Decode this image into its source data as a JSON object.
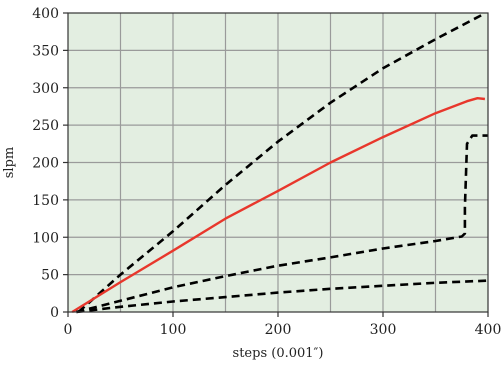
{
  "chart_data": {
    "type": "line",
    "title": "",
    "xlabel": "steps (0.001″)",
    "ylabel": "slpm",
    "xlim": [
      0,
      400
    ],
    "ylim": [
      0,
      400
    ],
    "x_ticks": [
      "0",
      "100",
      "200",
      "300",
      "400"
    ],
    "y_ticks": [
      "0",
      "50",
      "100",
      "150",
      "200",
      "250",
      "300",
      "350",
      "400"
    ],
    "grid": true,
    "x_minor_grid_step": 50,
    "y_grid_step": 50,
    "legend": "none",
    "series": [
      {
        "style": "dashed",
        "color": "#000000",
        "points": [
          [
            10,
            0
          ],
          [
            50,
            50
          ],
          [
            100,
            108
          ],
          [
            150,
            170
          ],
          [
            200,
            228
          ],
          [
            250,
            280
          ],
          [
            300,
            326
          ],
          [
            350,
            365
          ],
          [
            395,
            398
          ]
        ]
      },
      {
        "style": "solid",
        "color": "#e8372c",
        "points": [
          [
            4,
            0
          ],
          [
            50,
            40
          ],
          [
            100,
            82
          ],
          [
            150,
            125
          ],
          [
            200,
            162
          ],
          [
            250,
            200
          ],
          [
            300,
            234
          ],
          [
            350,
            266
          ],
          [
            380,
            282
          ],
          [
            390,
            286
          ],
          [
            397,
            285
          ]
        ]
      },
      {
        "style": "dashed",
        "color": "#000000",
        "points": [
          [
            8,
            0
          ],
          [
            50,
            15
          ],
          [
            100,
            33
          ],
          [
            150,
            48
          ],
          [
            200,
            62
          ],
          [
            250,
            73
          ],
          [
            300,
            85
          ],
          [
            350,
            95
          ],
          [
            375,
            101
          ],
          [
            378,
            105
          ],
          [
            378,
            140
          ],
          [
            380,
            225
          ],
          [
            385,
            236
          ],
          [
            400,
            236
          ]
        ]
      },
      {
        "style": "dashed",
        "color": "#000000",
        "points": [
          [
            8,
            0
          ],
          [
            50,
            7
          ],
          [
            100,
            14
          ],
          [
            150,
            20
          ],
          [
            200,
            26
          ],
          [
            250,
            31
          ],
          [
            300,
            35
          ],
          [
            350,
            39
          ],
          [
            400,
            42
          ]
        ]
      }
    ]
  },
  "colors": {
    "plot_background": "#e3eee1",
    "grid": "#9a9a9a",
    "axis": "#333333"
  }
}
